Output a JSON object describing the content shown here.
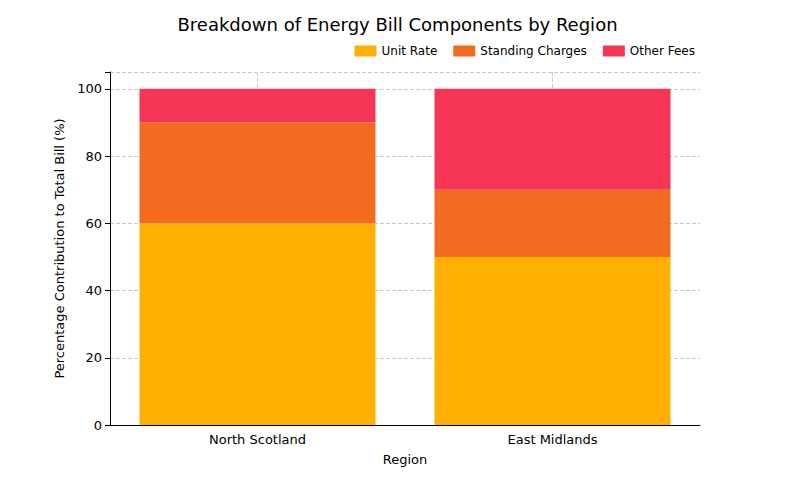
{
  "chart_data": {
    "type": "bar",
    "title": "Breakdown of Energy Bill Components by Region",
    "x_label": "Region",
    "y_label": "Percentage Contribution to Total Bill (%)",
    "categories": [
      "North Scotland",
      "East Midlands"
    ],
    "series": [
      {
        "name": "Unit Rate",
        "color": "#ffb000",
        "values": [
          60,
          50
        ]
      },
      {
        "name": "Standing Charges",
        "color": "#f26b21",
        "values": [
          30,
          20
        ]
      },
      {
        "name": "Other Fees",
        "color": "#f53655",
        "values": [
          10,
          30
        ]
      }
    ],
    "stacked": true,
    "ylim": [
      0,
      105
    ],
    "yticks": [
      0,
      20,
      40,
      60,
      80,
      100
    ],
    "grid": true,
    "legend": "upper right"
  }
}
